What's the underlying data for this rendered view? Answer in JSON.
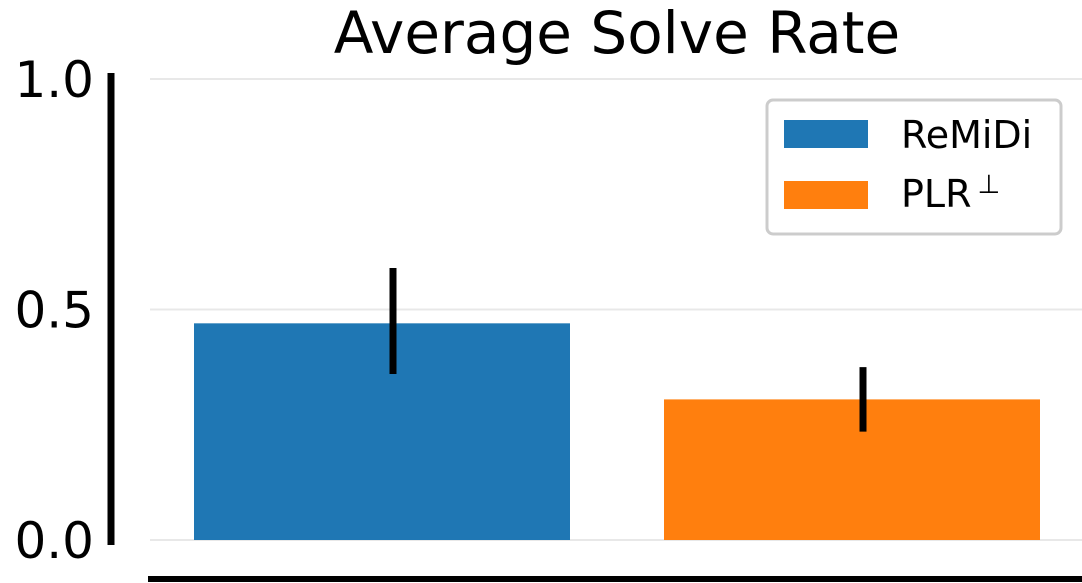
{
  "chart_data": {
    "type": "bar",
    "title": "Average Solve Rate",
    "xlabel": "",
    "ylabel": "",
    "ylim": [
      0,
      1.0
    ],
    "y_ticks": [
      {
        "value": 0.0,
        "label": "0.0"
      },
      {
        "value": 0.5,
        "label": "0.5"
      },
      {
        "value": 1.0,
        "label": "1.0"
      }
    ],
    "grid": true,
    "legend_position": "top-right",
    "series": [
      {
        "name": "ReMiDi",
        "value": 0.47,
        "error": [
          0.36,
          0.59
        ],
        "color": "#1f77b4"
      },
      {
        "name": "PLR",
        "name_superscript": "⊥",
        "value": 0.305,
        "error": [
          0.235,
          0.375
        ],
        "color": "#ff7f0e"
      }
    ]
  }
}
